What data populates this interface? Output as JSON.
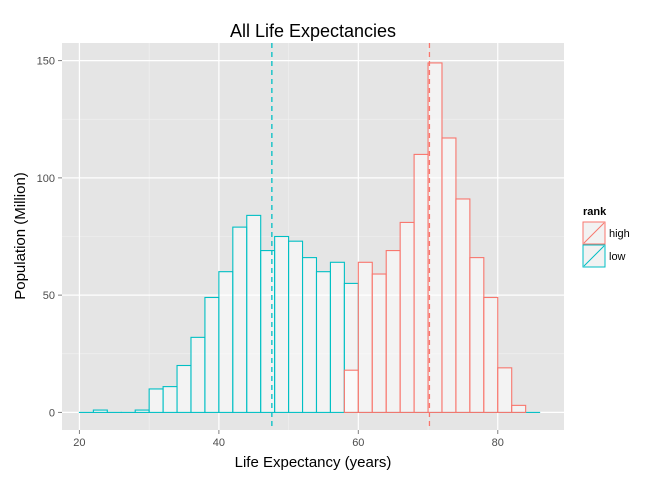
{
  "chart_data": {
    "type": "histogram",
    "title": "All Life Expectancies",
    "xlabel": "Life Expectancy (years)",
    "ylabel": "Population (Million)",
    "xlim": [
      17.5,
      89.5
    ],
    "ylim": [
      -7.5,
      157.5
    ],
    "x_ticks": [
      20,
      40,
      60,
      80
    ],
    "x_minor_ticks": [
      30,
      50,
      70
    ],
    "y_ticks": [
      0,
      50,
      100,
      150
    ],
    "y_minor_ticks": [
      25,
      75,
      125
    ],
    "grid": true,
    "bin_width": 2,
    "legend": {
      "title": "rank",
      "position": "right",
      "entries": [
        {
          "label": "high",
          "color": "#F8766D"
        },
        {
          "label": "low",
          "color": "#00BFC4"
        }
      ]
    },
    "series": [
      {
        "name": "low",
        "color": "#00BFC4",
        "bins_start": [
          20,
          22,
          24,
          26,
          28,
          30,
          32,
          34,
          36,
          38,
          40,
          42,
          44,
          46,
          48,
          50,
          52,
          54,
          56,
          58,
          60,
          62,
          64,
          66,
          68,
          70,
          72,
          74,
          76,
          78,
          80,
          82,
          84
        ],
        "values": [
          0,
          1,
          0,
          0,
          1,
          10,
          11,
          20,
          32,
          49,
          60,
          79,
          84,
          69,
          75,
          73,
          66,
          60,
          64,
          55,
          0,
          0,
          0,
          0,
          0,
          0,
          0,
          0,
          0,
          0,
          0,
          0,
          0
        ],
        "mean_line": 47.6
      },
      {
        "name": "high",
        "color": "#F8766D",
        "bins_start": [
          58,
          60,
          62,
          64,
          66,
          68,
          70,
          72,
          74,
          76,
          78,
          80,
          82
        ],
        "values": [
          18,
          64,
          59,
          69,
          81,
          110,
          149,
          117,
          91,
          66,
          49,
          19,
          3
        ],
        "mean_line": 70.2
      }
    ]
  }
}
